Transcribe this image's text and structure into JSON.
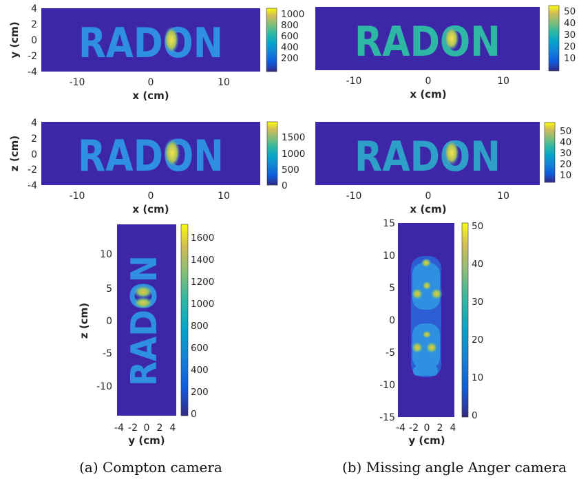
{
  "chart_data": [
    {
      "type": "heatmap",
      "panel": "a-top",
      "xlabel": "x (cm)",
      "ylabel": "y (cm)",
      "xlim": [
        -15,
        15
      ],
      "ylim": [
        -4,
        4
      ],
      "xticks": [
        "-10",
        "0",
        "10"
      ],
      "yticks": [
        "4",
        "2",
        "0",
        "-2",
        "-4"
      ],
      "image_text": "RADON",
      "colorbar": {
        "min": 0,
        "max": 1150,
        "ticks": [
          "1000",
          "800",
          "600",
          "400",
          "200"
        ]
      }
    },
    {
      "type": "heatmap",
      "panel": "b-top",
      "xlabel": "x (cm)",
      "ylabel": "",
      "xlim": [
        -15,
        15
      ],
      "ylim": [
        -4,
        4
      ],
      "xticks": [
        "-10",
        "0",
        "10"
      ],
      "yticks": [],
      "image_text": "RADON",
      "colorbar": {
        "min": 0,
        "max": 53,
        "ticks": [
          "50",
          "40",
          "30",
          "20",
          "10"
        ]
      }
    },
    {
      "type": "heatmap",
      "panel": "a-mid",
      "xlabel": "x (cm)",
      "ylabel": "z (cm)",
      "xlim": [
        -15,
        15
      ],
      "ylim": [
        -4,
        4
      ],
      "xticks": [
        "-10",
        "0",
        "10"
      ],
      "yticks": [
        "4",
        "2",
        "0",
        "-2",
        "-4"
      ],
      "image_text": "RADON",
      "colorbar": {
        "min": 0,
        "max": 1900,
        "ticks": [
          "1500",
          "1000",
          "500",
          "0"
        ]
      }
    },
    {
      "type": "heatmap",
      "panel": "b-mid",
      "xlabel": "x (cm)",
      "ylabel": "",
      "xlim": [
        -15,
        15
      ],
      "ylim": [
        -4,
        4
      ],
      "xticks": [
        "-10",
        "0",
        "10"
      ],
      "yticks": [],
      "image_text": "RADON",
      "colorbar": {
        "min": 0,
        "max": 57,
        "ticks": [
          "50",
          "40",
          "30",
          "20",
          "10"
        ]
      }
    },
    {
      "type": "heatmap",
      "panel": "a-bottom",
      "xlabel": "y (cm)",
      "ylabel": "z (cm)",
      "xlim": [
        -5,
        5
      ],
      "ylim": [
        -14,
        14
      ],
      "xticks": [
        "-4",
        "-2",
        "0",
        "2",
        "4"
      ],
      "yticks": [
        "10",
        "5",
        "0",
        "-5",
        "-10"
      ],
      "image_text": "RADON",
      "colorbar": {
        "min": 0,
        "max": 1700,
        "ticks": [
          "1600",
          "1400",
          "1200",
          "1000",
          "800",
          "600",
          "400",
          "200",
          "0"
        ]
      }
    },
    {
      "type": "heatmap",
      "panel": "b-bottom",
      "xlabel": "y (cm)",
      "ylabel": "",
      "xlim": [
        -5,
        5
      ],
      "ylim": [
        -15,
        15
      ],
      "xticks": [
        "-4",
        "-2",
        "0",
        "2",
        "4"
      ],
      "yticks": [
        "15",
        "10",
        "5",
        "0",
        "-5",
        "-10",
        "-15"
      ],
      "colorbar": {
        "min": 0,
        "max": 51,
        "ticks": [
          "50",
          "40",
          "30",
          "20",
          "10",
          "0"
        ]
      }
    }
  ],
  "captions": {
    "a": "(a) Compton camera",
    "b": "(b) Missing angle Anger camera"
  },
  "colors": {
    "background": "#3e26a8",
    "mid": "#2f8fe0",
    "high": "#e8c53a",
    "top": "#f9fb0e"
  }
}
